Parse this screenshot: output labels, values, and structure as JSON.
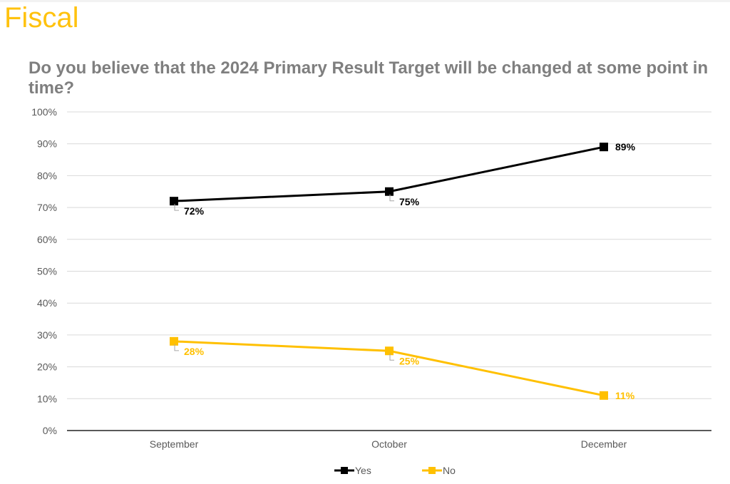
{
  "header": {
    "brand": "Fiscal",
    "brand_color": "#ffc20e"
  },
  "chart_data": {
    "type": "line",
    "title": "Do you believe that the 2024 Primary Result Target will be changed at some point in time?",
    "xlabel": "",
    "ylabel": "",
    "categories": [
      "September",
      "October",
      "December"
    ],
    "ylim": [
      0,
      100
    ],
    "yticks": [
      0,
      10,
      20,
      30,
      40,
      50,
      60,
      70,
      80,
      90,
      100
    ],
    "ytick_labels": [
      "0%",
      "10%",
      "20%",
      "30%",
      "40%",
      "50%",
      "60%",
      "70%",
      "80%",
      "90%",
      "100%"
    ],
    "grid": true,
    "legend_position": "bottom",
    "series": [
      {
        "name": "Yes",
        "color": "#000000",
        "values": [
          72,
          75,
          89
        ],
        "labels": [
          "72%",
          "75%",
          "89%"
        ]
      },
      {
        "name": "No",
        "color": "#ffc000",
        "values": [
          28,
          25,
          11
        ],
        "labels": [
          "28%",
          "25%",
          "11%"
        ]
      }
    ]
  }
}
